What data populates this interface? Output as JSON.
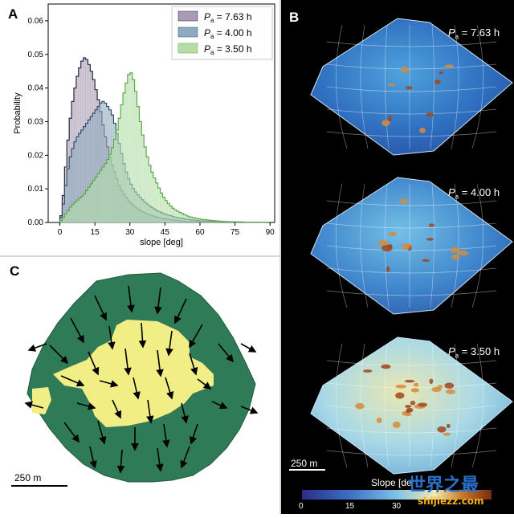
{
  "chart_data": [
    {
      "panel": "A",
      "type": "histogram",
      "xlabel": "slope [deg]",
      "ylabel": "Probability",
      "xlim": [
        -5,
        92
      ],
      "ylim": [
        0,
        0.065
      ],
      "xticks": [
        "0",
        "15",
        "30",
        "45",
        "60",
        "75",
        "90"
      ],
      "yticks": [
        "0.00",
        "0.01",
        "0.02",
        "0.03",
        "0.04",
        "0.05",
        "0.06"
      ],
      "bin_width_deg": 1,
      "legend_position": "top-right",
      "legend": [
        {
          "p": "P",
          "sub": "a",
          "text": " = 7.63 h"
        },
        {
          "p": "P",
          "sub": "a",
          "text": " = 4.00 h"
        },
        {
          "p": "P",
          "sub": "a",
          "text": " = 3.50 h"
        }
      ],
      "series": [
        {
          "color_fill": "#a89bb3",
          "color_line": "#2b2440",
          "peak_deg": 10,
          "peak_prob": 0.049,
          "profile": [
            [
              0,
              0
            ],
            [
              1,
              0.004
            ],
            [
              2,
              0.012
            ],
            [
              3,
              0.021
            ],
            [
              4,
              0.028
            ],
            [
              5,
              0.034
            ],
            [
              6,
              0.038
            ],
            [
              7,
              0.042
            ],
            [
              8,
              0.045
            ],
            [
              9,
              0.047
            ],
            [
              10,
              0.049
            ],
            [
              11,
              0.049
            ],
            [
              12,
              0.048
            ],
            [
              13,
              0.046
            ],
            [
              14,
              0.044
            ],
            [
              15,
              0.041
            ],
            [
              16,
              0.038
            ],
            [
              17,
              0.035
            ],
            [
              18,
              0.031
            ],
            [
              19,
              0.027
            ],
            [
              20,
              0.024
            ],
            [
              21,
              0.021
            ],
            [
              22,
              0.018
            ],
            [
              23,
              0.016
            ],
            [
              24,
              0.014
            ],
            [
              25,
              0.012
            ],
            [
              26,
              0.01
            ],
            [
              27,
              0.009
            ],
            [
              28,
              0.008
            ],
            [
              29,
              0.007
            ],
            [
              30,
              0.006
            ],
            [
              32,
              0.0048
            ],
            [
              34,
              0.0038
            ],
            [
              36,
              0.003
            ],
            [
              38,
              0.0024
            ],
            [
              40,
              0.0019
            ],
            [
              42,
              0.0015
            ],
            [
              45,
              0.0011
            ],
            [
              50,
              0.0006
            ],
            [
              55,
              0.0003
            ],
            [
              60,
              0.0002
            ],
            [
              70,
              0.0001
            ],
            [
              90,
              0
            ]
          ]
        },
        {
          "color_fill": "#90aac0",
          "color_line": "#2c4d6b",
          "peak_deg": 19,
          "peak_prob": 0.036,
          "profile": [
            [
              0,
              0
            ],
            [
              1,
              0.003
            ],
            [
              2,
              0.008
            ],
            [
              3,
              0.014
            ],
            [
              4,
              0.018
            ],
            [
              5,
              0.021
            ],
            [
              6,
              0.023
            ],
            [
              7,
              0.025
            ],
            [
              8,
              0.026
            ],
            [
              9,
              0.027
            ],
            [
              10,
              0.028
            ],
            [
              11,
              0.029
            ],
            [
              12,
              0.03
            ],
            [
              13,
              0.031
            ],
            [
              14,
              0.032
            ],
            [
              15,
              0.033
            ],
            [
              16,
              0.034
            ],
            [
              17,
              0.035
            ],
            [
              18,
              0.036
            ],
            [
              19,
              0.036
            ],
            [
              20,
              0.035
            ],
            [
              21,
              0.034
            ],
            [
              22,
              0.033
            ],
            [
              23,
              0.031
            ],
            [
              24,
              0.028
            ],
            [
              25,
              0.025
            ],
            [
              26,
              0.022
            ],
            [
              27,
              0.019
            ],
            [
              28,
              0.016
            ],
            [
              29,
              0.014
            ],
            [
              30,
              0.012
            ],
            [
              32,
              0.0095
            ],
            [
              34,
              0.0078
            ],
            [
              36,
              0.0064
            ],
            [
              38,
              0.0052
            ],
            [
              40,
              0.0042
            ],
            [
              42,
              0.0034
            ],
            [
              45,
              0.0025
            ],
            [
              50,
              0.0015
            ],
            [
              55,
              0.0009
            ],
            [
              60,
              0.0005
            ],
            [
              70,
              0.0002
            ],
            [
              90,
              0
            ]
          ]
        },
        {
          "color_fill": "#b3dea7",
          "color_line": "#5aa84a",
          "peak_deg": 30,
          "peak_prob": 0.045,
          "profile": [
            [
              0,
              0
            ],
            [
              1,
              0.001
            ],
            [
              2,
              0.002
            ],
            [
              3,
              0.003
            ],
            [
              4,
              0.004
            ],
            [
              5,
              0.005
            ],
            [
              8,
              0.007
            ],
            [
              10,
              0.008
            ],
            [
              12,
              0.01
            ],
            [
              14,
              0.012
            ],
            [
              16,
              0.014
            ],
            [
              18,
              0.016
            ],
            [
              20,
              0.018
            ],
            [
              22,
              0.021
            ],
            [
              24,
              0.026
            ],
            [
              25,
              0.029
            ],
            [
              26,
              0.033
            ],
            [
              27,
              0.037
            ],
            [
              28,
              0.04
            ],
            [
              29,
              0.043
            ],
            [
              30,
              0.045
            ],
            [
              31,
              0.044
            ],
            [
              32,
              0.041
            ],
            [
              33,
              0.037
            ],
            [
              34,
              0.032
            ],
            [
              35,
              0.028
            ],
            [
              36,
              0.024
            ],
            [
              37,
              0.021
            ],
            [
              38,
              0.018
            ],
            [
              39,
              0.016
            ],
            [
              40,
              0.014
            ],
            [
              42,
              0.011
            ],
            [
              44,
              0.008
            ],
            [
              46,
              0.006
            ],
            [
              48,
              0.0045
            ],
            [
              50,
              0.0035
            ],
            [
              55,
              0.0018
            ],
            [
              60,
              0.001
            ],
            [
              65,
              0.0006
            ],
            [
              70,
              0.0003
            ],
            [
              80,
              0.0001
            ],
            [
              90,
              0
            ]
          ]
        }
      ]
    },
    {
      "panel": "B",
      "type": "heatmap",
      "labels": [
        {
          "p": "P",
          "sub": "a",
          "text": " = 7.63 h"
        },
        {
          "p": "P",
          "sub": "a",
          "text": " = 4.00 h"
        },
        {
          "p": "P",
          "sub": "a",
          "text": " = 3.50 h"
        }
      ],
      "scale_bar_label": "250 m",
      "colorbar_label": "Slope [de",
      "colorbar_ticks": [
        "0",
        "15",
        "30"
      ],
      "colorbar_colors": [
        "#2b2f86",
        "#3a6fc4",
        "#7fc2e8",
        "#f0eab0",
        "#c9762a",
        "#7a2a10"
      ]
    },
    {
      "panel": "C",
      "type": "vector-field",
      "scale_bar_label": "250 m",
      "outer_color": "#2f7a57",
      "inner_color": "#f2ee86"
    }
  ],
  "panels": {
    "a": "A",
    "b": "B",
    "c": "C"
  },
  "watermark": {
    "cn": "世界之最",
    "url": "shijiezz.com"
  }
}
